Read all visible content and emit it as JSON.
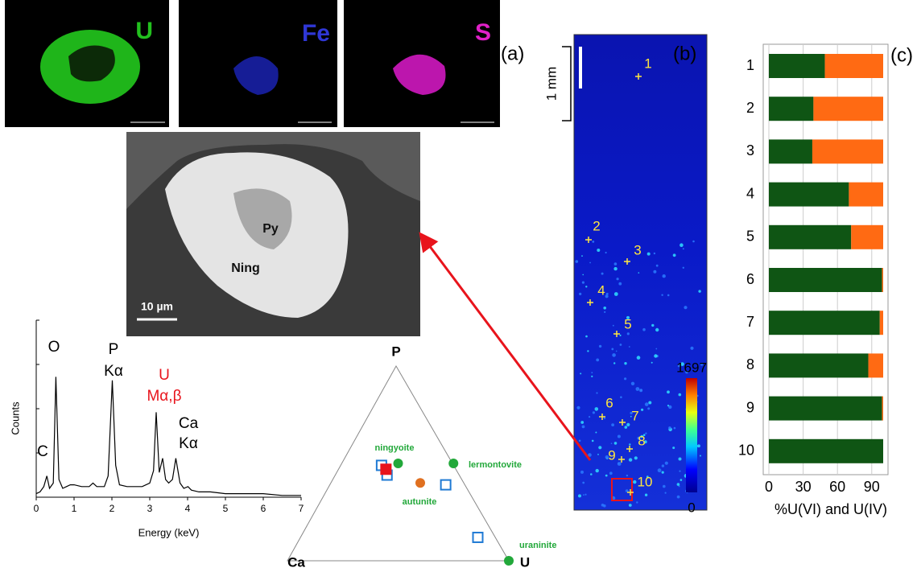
{
  "panel_labels": [
    "(a)",
    "(b)",
    "(c)"
  ],
  "eds_maps": [
    {
      "element": "U",
      "color": "#22c01e"
    },
    {
      "element": "Fe",
      "color": "#2f37d6"
    },
    {
      "element": "S",
      "color": "#e020c8"
    }
  ],
  "sem_image": {
    "labels": [
      "Py",
      "Ning"
    ],
    "scale_bar": "10 µm"
  },
  "map": {
    "scale_label": "1 mm",
    "point_labels": [
      "1",
      "2",
      "3",
      "4",
      "5",
      "6",
      "7",
      "8",
      "9",
      "10"
    ],
    "colorbar": {
      "ticks": [
        1697,
        0
      ]
    }
  },
  "chart_data": [
    {
      "type": "line",
      "x_label": "Energy (keV)",
      "y_label": "Counts",
      "xlim": [
        0,
        7
      ],
      "xticks": [
        0,
        1,
        2,
        3,
        4,
        5,
        6,
        7
      ],
      "ylim": [
        0,
        100
      ],
      "color": "#000000",
      "x": [
        0.0,
        0.1,
        0.2,
        0.28,
        0.35,
        0.45,
        0.52,
        0.6,
        0.7,
        0.8,
        0.9,
        1.0,
        1.2,
        1.4,
        1.5,
        1.6,
        1.8,
        1.9,
        2.01,
        2.1,
        2.2,
        2.4,
        2.6,
        2.8,
        3.0,
        3.1,
        3.17,
        3.25,
        3.34,
        3.42,
        3.5,
        3.6,
        3.69,
        3.8,
        3.9,
        4.01,
        4.1,
        4.3,
        4.6,
        5.0,
        5.5,
        6.0,
        6.5,
        7.0
      ],
      "values": [
        2,
        3,
        6,
        12,
        5,
        8,
        68,
        10,
        5,
        6,
        7,
        7,
        6,
        6,
        8,
        6,
        6,
        12,
        66,
        18,
        7,
        6,
        6,
        6,
        8,
        15,
        48,
        14,
        22,
        10,
        8,
        10,
        22,
        8,
        5,
        6,
        4,
        3,
        3,
        2,
        2,
        2,
        1,
        1
      ],
      "annotations": [
        {
          "lines": [
            "O"
          ],
          "color": "#000000"
        },
        {
          "lines": [
            "P",
            "Kα"
          ],
          "color": "#000000"
        },
        {
          "lines": [
            "U",
            "Mα,β"
          ],
          "color": "#e8141c"
        },
        {
          "lines": [
            "Ca",
            "Kα"
          ],
          "color": "#000000"
        },
        {
          "lines": [
            "C"
          ],
          "color": "#000000"
        }
      ]
    },
    {
      "type": "ternary",
      "corners": [
        "P",
        "Ca",
        "U"
      ],
      "minerals": [
        {
          "name": "ningyoite",
          "color": "#22a83a",
          "values": [
            50,
            25,
            25
          ]
        },
        {
          "name": "lermontovite",
          "color": "#22a83a",
          "values": [
            50,
            0,
            50
          ]
        },
        {
          "name": "autunite",
          "color": "#e07020",
          "values": [
            40,
            20,
            40
          ]
        },
        {
          "name": "uraninite",
          "color": "#22a83a",
          "values": [
            0,
            0,
            100
          ]
        }
      ],
      "label_color": "#22a83a",
      "samples": [
        {
          "color": "#1f7ad4",
          "points": [
            [
              49,
              33,
              18
            ],
            [
              44,
              33,
              23
            ],
            [
              39,
              9,
              52
            ],
            [
              12,
              8,
              80
            ]
          ]
        },
        {
          "color": "#e8141c",
          "points": [
            [
              47,
              32,
              21
            ]
          ]
        }
      ]
    },
    {
      "type": "bar",
      "orientation": "horizontal",
      "stacked": true,
      "x_label": "%U(VI) and U(IV)",
      "categories": [
        "1",
        "2",
        "3",
        "4",
        "5",
        "6",
        "7",
        "8",
        "9",
        "10"
      ],
      "xlim": [
        0,
        100
      ],
      "xticks": [
        0,
        30,
        60,
        90
      ],
      "grid": true,
      "series": [
        {
          "color": "#0f5514",
          "values": [
            49,
            39,
            38,
            70,
            72,
            99,
            97,
            87,
            99,
            100
          ]
        },
        {
          "color": "#ff6a13",
          "values": [
            51,
            61,
            62,
            30,
            28,
            1,
            3,
            13,
            1,
            0
          ]
        }
      ]
    }
  ]
}
